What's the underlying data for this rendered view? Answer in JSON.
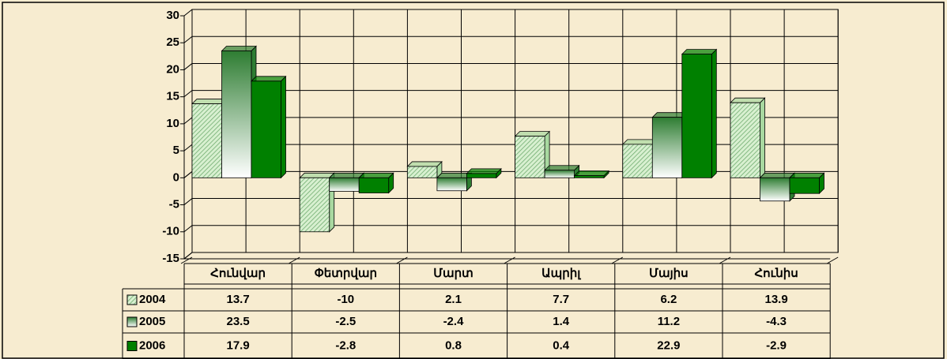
{
  "chart_data": {
    "type": "bar",
    "categories": [
      "Հունվար",
      "Փետրվար",
      "Մարտ",
      "Ապրիլ",
      "Մայիս",
      "Հունիս"
    ],
    "series": [
      {
        "name": "2004",
        "color": "#a8d8a0",
        "values": [
          13.7,
          -10,
          2.1,
          7.7,
          6.2,
          13.9
        ]
      },
      {
        "name": "2005",
        "color": "#2e7d32",
        "values": [
          23.5,
          -2.5,
          -2.4,
          1.4,
          11.2,
          -4.3
        ]
      },
      {
        "name": "2006",
        "color": "#008000",
        "values": [
          17.9,
          -2.8,
          0.8,
          0.4,
          22.9,
          -2.9
        ]
      }
    ],
    "ylim": [
      -15,
      30
    ],
    "yticks": [
      30,
      25,
      20,
      15,
      10,
      5,
      0,
      -5,
      -10,
      -15
    ],
    "grid": true
  }
}
